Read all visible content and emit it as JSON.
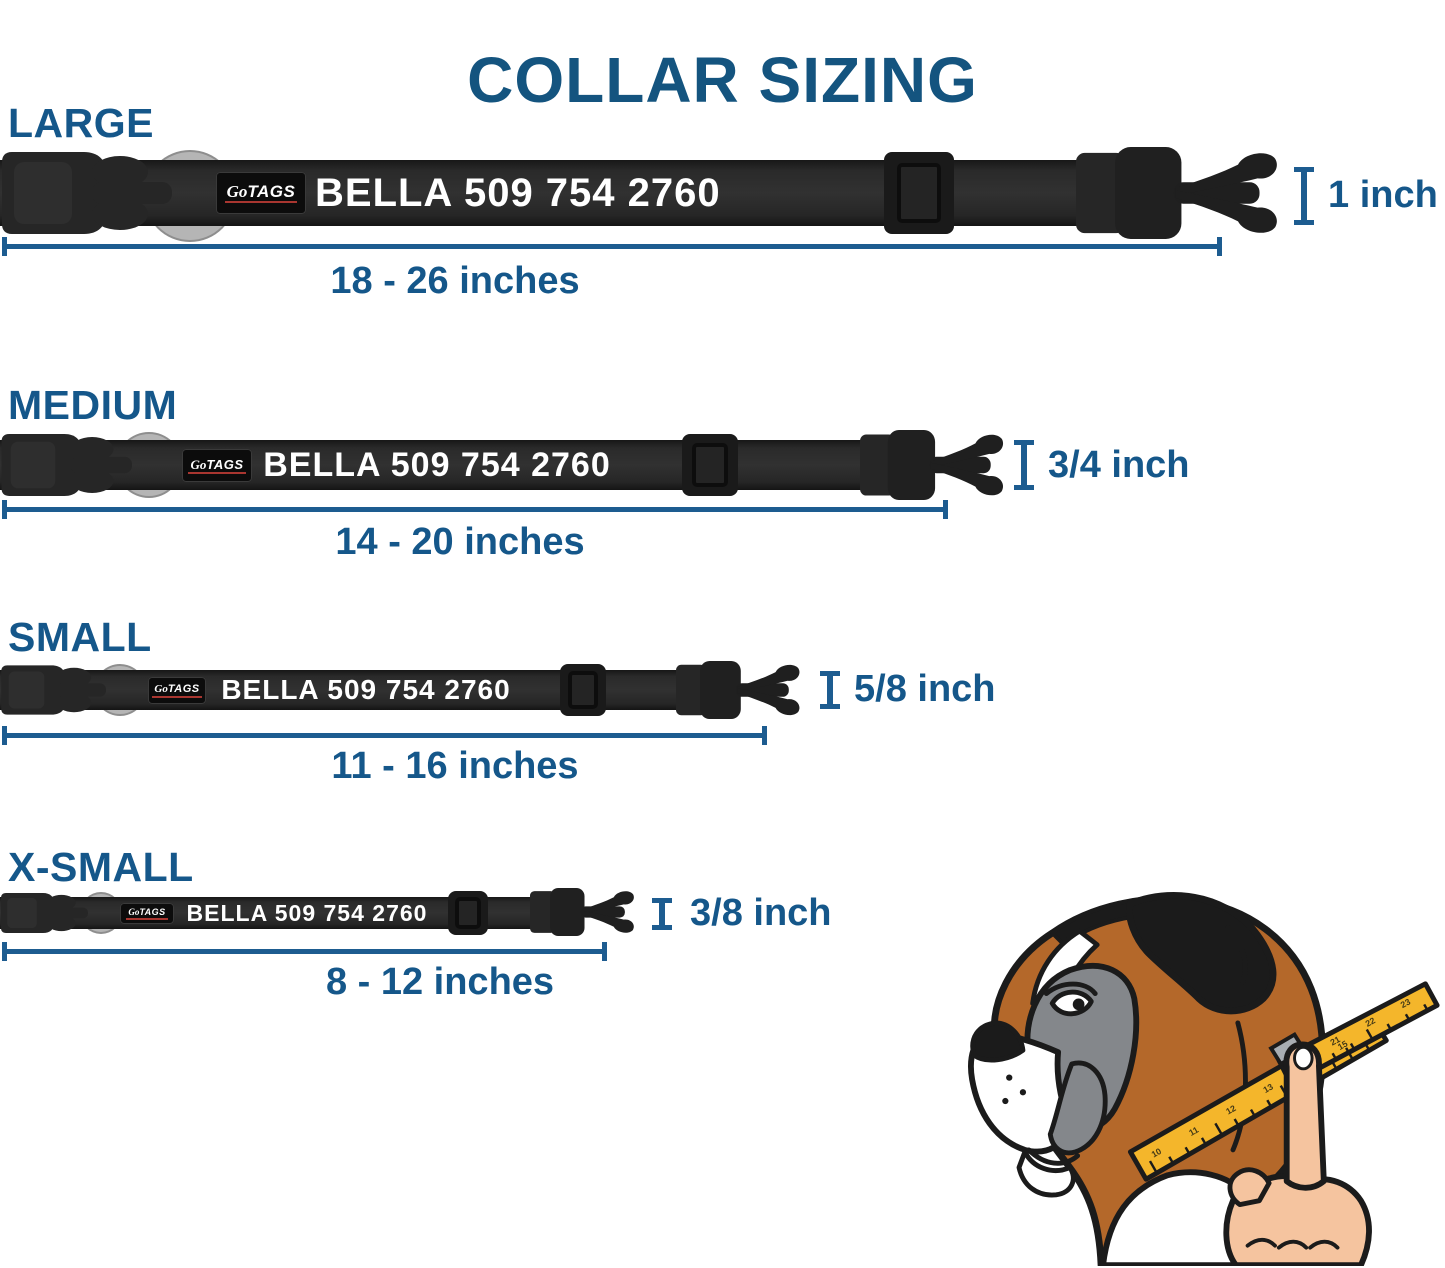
{
  "title": "COLLAR SIZING",
  "brand": {
    "script": "Go",
    "rest": "TAGS"
  },
  "rows": [
    {
      "id": "large",
      "label": "LARGE",
      "tag_text": "BELLA 509 754 2760",
      "length_range": "18 - 26 inches",
      "width_label": "1 inch"
    },
    {
      "id": "medium",
      "label": "MEDIUM",
      "tag_text": "BELLA 509 754 2760",
      "length_range": "14 - 20 inches",
      "width_label": "3/4 inch"
    },
    {
      "id": "small",
      "label": "SMALL",
      "tag_text": "BELLA 509 754 2760",
      "length_range": "11 - 16 inches",
      "width_label": "5/8 inch"
    },
    {
      "id": "xsmall",
      "label": "X-SMALL",
      "tag_text": "BELLA 509 754 2760",
      "length_range": "8 - 12 inches",
      "width_label": "3/8 inch"
    }
  ],
  "illustration": {
    "tape_numbers_lower": [
      "10",
      "11",
      "12",
      "13",
      "14",
      "15"
    ],
    "tape_numbers_upper": [
      "20",
      "21",
      "22",
      "23"
    ]
  },
  "colors": {
    "accent_blue": "#15578a",
    "measure_blue": "#1d5c90",
    "collar_black": "#262626",
    "ring_gray": "#b5b5b5",
    "logo_red": "#a93630",
    "tape_yellow": "#f4b62b",
    "dog_tan": "#b4682a",
    "dog_gray": "#84878b",
    "skin": "#f5c49f"
  }
}
